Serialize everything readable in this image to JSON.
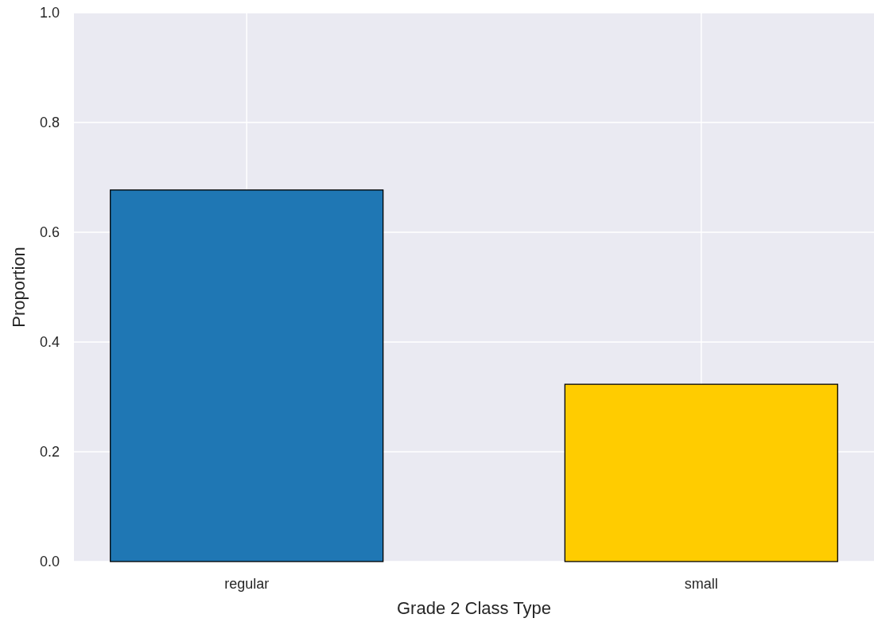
{
  "chart_data": {
    "type": "bar",
    "xlabel": "Grade 2 Class Type",
    "ylabel": "Proportion",
    "categories": [
      "regular",
      "small"
    ],
    "values": [
      0.677,
      0.323
    ],
    "colors": [
      "#1f77b4",
      "#ffcc00"
    ],
    "ylim": [
      0,
      1
    ],
    "yticks": [
      {
        "value": 0,
        "label": "0.0"
      },
      {
        "value": 0.2,
        "label": "0.2"
      },
      {
        "value": 0.4,
        "label": "0.4"
      },
      {
        "value": 0.6,
        "label": "0.6"
      },
      {
        "value": 0.8,
        "label": "0.8"
      },
      {
        "value": 1,
        "label": "1.0"
      }
    ],
    "grid": true
  }
}
